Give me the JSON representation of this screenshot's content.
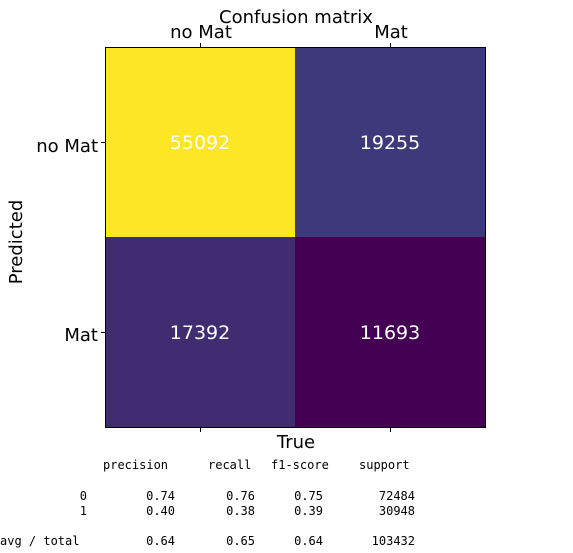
{
  "chart_data": {
    "type": "heatmap",
    "title": "Confusion matrix",
    "xlabel": "True",
    "ylabel": "Predicted",
    "x_ticks": [
      "no Mat",
      "Mat"
    ],
    "y_ticks": [
      "no Mat",
      "Mat"
    ],
    "matrix": [
      [
        55092,
        19255
      ],
      [
        17392,
        11693
      ]
    ],
    "colormap": [
      "#440154",
      "#3b528b",
      "#21918c",
      "#5ec962",
      "#fde725"
    ],
    "text_color": "#ffffff"
  },
  "report": {
    "headers": [
      "precision",
      "recall",
      "f1-score",
      "support"
    ],
    "rows": [
      {
        "label": "0",
        "values": [
          "0.74",
          "0.76",
          "0.75",
          "72484"
        ]
      },
      {
        "label": "1",
        "values": [
          "0.40",
          "0.38",
          "0.39",
          "30948"
        ]
      }
    ],
    "total": {
      "label": "avg / total",
      "values": [
        "0.64",
        "0.65",
        "0.64",
        "103432"
      ]
    }
  }
}
